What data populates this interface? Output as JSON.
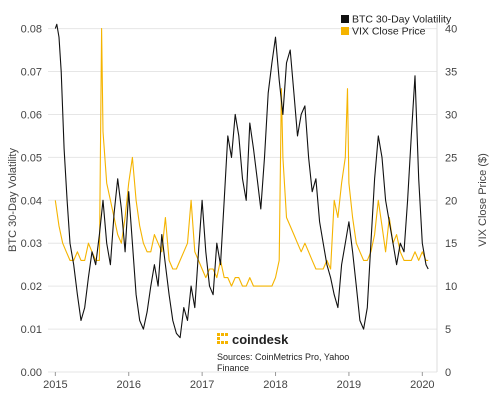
{
  "chart_data": {
    "type": "line",
    "title": "",
    "xlabel": "",
    "ylabel": "BTC 30-Day Volatility",
    "y2label": "VIX Close Price ($)",
    "xlim": [
      2014.9,
      2020.2
    ],
    "ylim": [
      0,
      0.082
    ],
    "y2lim": [
      0,
      41
    ],
    "x_ticks": [
      2015,
      2016,
      2017,
      2018,
      2019,
      2020
    ],
    "y_ticks": [
      0.0,
      0.01,
      0.02,
      0.03,
      0.04,
      0.05,
      0.06,
      0.07,
      0.08
    ],
    "y_tick_labels": [
      "0.00",
      "0.01",
      "0.02",
      "0.03",
      "0.04",
      "0.05",
      "0.06",
      "0.07",
      "0.08"
    ],
    "y2_ticks": [
      0,
      5,
      10,
      15,
      20,
      25,
      30,
      35,
      40
    ],
    "grid": "horizontal",
    "legend_position": "top-right",
    "series": [
      {
        "name": "BTC 30-Day Volatility",
        "axis": "left",
        "color": "#111111",
        "x": [
          2015.0,
          2015.02,
          2015.05,
          2015.08,
          2015.12,
          2015.16,
          2015.2,
          2015.25,
          2015.3,
          2015.35,
          2015.4,
          2015.45,
          2015.5,
          2015.55,
          2015.6,
          2015.65,
          2015.7,
          2015.75,
          2015.8,
          2015.85,
          2015.9,
          2015.95,
          2016.0,
          2016.05,
          2016.1,
          2016.15,
          2016.2,
          2016.25,
          2016.3,
          2016.35,
          2016.4,
          2016.45,
          2016.5,
          2016.55,
          2016.6,
          2016.65,
          2016.7,
          2016.75,
          2016.8,
          2016.85,
          2016.9,
          2016.95,
          2017.0,
          2017.05,
          2017.1,
          2017.15,
          2017.2,
          2017.25,
          2017.3,
          2017.35,
          2017.4,
          2017.45,
          2017.5,
          2017.55,
          2017.6,
          2017.65,
          2017.7,
          2017.75,
          2017.8,
          2017.85,
          2017.9,
          2017.95,
          2018.0,
          2018.05,
          2018.1,
          2018.15,
          2018.2,
          2018.25,
          2018.3,
          2018.35,
          2018.4,
          2018.45,
          2018.5,
          2018.55,
          2018.6,
          2018.65,
          2018.7,
          2018.75,
          2018.8,
          2018.85,
          2018.9,
          2018.95,
          2019.0,
          2019.05,
          2019.1,
          2019.15,
          2019.2,
          2019.25,
          2019.3,
          2019.35,
          2019.4,
          2019.45,
          2019.5,
          2019.55,
          2019.6,
          2019.65,
          2019.7,
          2019.75,
          2019.8,
          2019.85,
          2019.9,
          2019.95,
          2020.0,
          2020.05,
          2020.08
        ],
        "values": [
          0.08,
          0.081,
          0.078,
          0.07,
          0.052,
          0.04,
          0.03,
          0.025,
          0.018,
          0.012,
          0.015,
          0.022,
          0.028,
          0.025,
          0.032,
          0.04,
          0.03,
          0.025,
          0.037,
          0.045,
          0.038,
          0.028,
          0.042,
          0.03,
          0.018,
          0.012,
          0.01,
          0.014,
          0.02,
          0.025,
          0.02,
          0.032,
          0.025,
          0.018,
          0.012,
          0.009,
          0.008,
          0.015,
          0.012,
          0.02,
          0.015,
          0.028,
          0.04,
          0.028,
          0.02,
          0.018,
          0.03,
          0.025,
          0.04,
          0.055,
          0.05,
          0.06,
          0.055,
          0.045,
          0.04,
          0.058,
          0.052,
          0.045,
          0.038,
          0.05,
          0.065,
          0.072,
          0.078,
          0.068,
          0.06,
          0.072,
          0.075,
          0.065,
          0.055,
          0.06,
          0.062,
          0.05,
          0.042,
          0.045,
          0.035,
          0.03,
          0.025,
          0.022,
          0.018,
          0.015,
          0.025,
          0.03,
          0.035,
          0.028,
          0.02,
          0.012,
          0.01,
          0.015,
          0.03,
          0.045,
          0.055,
          0.05,
          0.04,
          0.035,
          0.03,
          0.025,
          0.03,
          0.028,
          0.04,
          0.055,
          0.069,
          0.045,
          0.03,
          0.025,
          0.024
        ]
      },
      {
        "name": "VIX Close Price",
        "axis": "right",
        "color": "#f5b400",
        "x": [
          2015.0,
          2015.05,
          2015.1,
          2015.15,
          2015.2,
          2015.25,
          2015.3,
          2015.35,
          2015.4,
          2015.45,
          2015.5,
          2015.55,
          2015.6,
          2015.63,
          2015.65,
          2015.7,
          2015.75,
          2015.8,
          2015.85,
          2015.9,
          2015.95,
          2016.0,
          2016.05,
          2016.1,
          2016.15,
          2016.2,
          2016.25,
          2016.3,
          2016.35,
          2016.4,
          2016.45,
          2016.5,
          2016.55,
          2016.6,
          2016.65,
          2016.7,
          2016.75,
          2016.8,
          2016.85,
          2016.9,
          2016.95,
          2017.0,
          2017.05,
          2017.1,
          2017.15,
          2017.2,
          2017.25,
          2017.3,
          2017.35,
          2017.4,
          2017.45,
          2017.5,
          2017.55,
          2017.6,
          2017.65,
          2017.7,
          2017.75,
          2017.8,
          2017.85,
          2017.9,
          2017.95,
          2018.0,
          2018.05,
          2018.08,
          2018.1,
          2018.15,
          2018.2,
          2018.25,
          2018.3,
          2018.35,
          2018.4,
          2018.45,
          2018.5,
          2018.55,
          2018.6,
          2018.65,
          2018.7,
          2018.75,
          2018.8,
          2018.85,
          2018.9,
          2018.95,
          2018.98,
          2019.0,
          2019.05,
          2019.1,
          2019.15,
          2019.2,
          2019.25,
          2019.3,
          2019.35,
          2019.4,
          2019.45,
          2019.5,
          2019.55,
          2019.6,
          2019.65,
          2019.7,
          2019.75,
          2019.8,
          2019.85,
          2019.9,
          2019.95,
          2020.0,
          2020.05,
          2020.08
        ],
        "values": [
          20,
          17,
          15,
          14,
          13,
          13,
          14,
          13,
          13,
          15,
          14,
          13,
          13,
          40,
          28,
          22,
          20,
          18,
          16,
          15,
          18,
          22,
          25,
          20,
          17,
          15,
          14,
          14,
          16,
          15,
          14,
          18,
          13,
          12,
          12,
          13,
          14,
          15,
          20,
          14,
          13,
          12,
          11,
          12,
          12,
          11,
          13,
          11,
          11,
          10,
          11,
          11,
          10,
          10,
          11,
          10,
          10,
          10,
          10,
          10,
          10,
          11,
          13,
          33,
          25,
          18,
          17,
          16,
          15,
          14,
          15,
          14,
          13,
          12,
          12,
          12,
          13,
          12,
          20,
          18,
          22,
          25,
          33,
          22,
          18,
          15,
          14,
          13,
          13,
          14,
          16,
          20,
          17,
          14,
          18,
          15,
          16,
          14,
          13,
          13,
          13,
          14,
          13,
          14,
          13,
          13
        ]
      }
    ],
    "legend": [
      {
        "name": "BTC 30-Day Volatility",
        "color": "#111111"
      },
      {
        "name": "VIX Close Price",
        "color": "#f5b400"
      }
    ]
  },
  "brand": {
    "name": "coindesk",
    "logo_color": "#f5b400"
  },
  "source": {
    "line1": "Sources: CoinMetrics Pro, Yahoo",
    "line2": "Finance"
  }
}
